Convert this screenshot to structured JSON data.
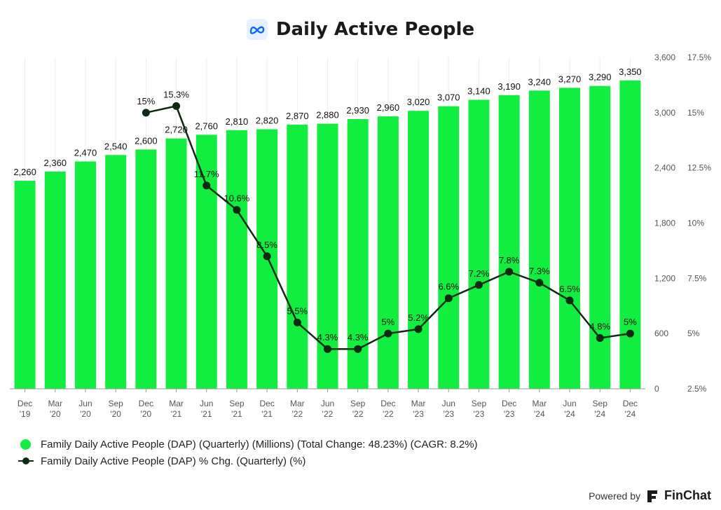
{
  "chart_data": {
    "type": "bar",
    "title": "Daily Active People",
    "categories": [
      "Dec '19",
      "Mar '20",
      "Jun '20",
      "Sep '20",
      "Dec '20",
      "Mar '21",
      "Jun '21",
      "Sep '21",
      "Dec '21",
      "Mar '22",
      "Jun '22",
      "Sep '22",
      "Dec '22",
      "Mar '23",
      "Jun '23",
      "Sep '23",
      "Dec '23",
      "Mar '24",
      "Jun '24",
      "Sep '24",
      "Dec '24"
    ],
    "category_lines": [
      [
        "Dec",
        "'19"
      ],
      [
        "Mar",
        "'20"
      ],
      [
        "Jun",
        "'20"
      ],
      [
        "Sep",
        "'20"
      ],
      [
        "Dec",
        "'20"
      ],
      [
        "Mar",
        "'21"
      ],
      [
        "Jun",
        "'21"
      ],
      [
        "Sep",
        "'21"
      ],
      [
        "Dec",
        "'21"
      ],
      [
        "Mar",
        "'22"
      ],
      [
        "Jun",
        "'22"
      ],
      [
        "Sep",
        "'22"
      ],
      [
        "Dec",
        "'22"
      ],
      [
        "Mar",
        "'23"
      ],
      [
        "Jun",
        "'23"
      ],
      [
        "Sep",
        "'23"
      ],
      [
        "Dec",
        "'23"
      ],
      [
        "Mar",
        "'24"
      ],
      [
        "Jun",
        "'24"
      ],
      [
        "Sep",
        "'24"
      ],
      [
        "Dec",
        "'24"
      ]
    ],
    "series": [
      {
        "name": "Family Daily Active People (DAP) (Quarterly) (Millions) (Total Change: 48.23%) (CAGR: 8.2%)",
        "type": "bar",
        "axis": "left",
        "color": "#12ee3f",
        "values": [
          2260,
          2360,
          2470,
          2540,
          2600,
          2720,
          2760,
          2810,
          2820,
          2870,
          2880,
          2930,
          2960,
          3020,
          3070,
          3140,
          3190,
          3240,
          3270,
          3290,
          3350
        ],
        "labels": [
          "2,260",
          "2,360",
          "2,470",
          "2,540",
          "2,600",
          "2,720",
          "2,760",
          "2,810",
          "2,820",
          "2,870",
          "2,880",
          "2,930",
          "2,960",
          "3,020",
          "3,070",
          "3,140",
          "3,190",
          "3,240",
          "3,270",
          "3,290",
          "3,350"
        ]
      },
      {
        "name": "Family Daily Active People (DAP) % Chg. (Quarterly) (%)",
        "type": "line",
        "axis": "right",
        "color": "#0f2a12",
        "values": [
          null,
          null,
          null,
          null,
          15,
          15.3,
          11.7,
          10.6,
          8.5,
          5.5,
          4.3,
          4.3,
          5,
          5.2,
          6.6,
          7.2,
          7.8,
          7.3,
          6.5,
          4.8,
          5
        ],
        "labels": [
          "",
          "",
          "",
          "",
          "15%",
          "15.3%",
          "11.7%",
          "10.6%",
          "8.5%",
          "5.5%",
          "4.3%",
          "4.3%",
          "5%",
          "5.2%",
          "6.6%",
          "7.2%",
          "7.8%",
          "7.3%",
          "6.5%",
          "4.8%",
          "5%"
        ]
      }
    ],
    "y_left": {
      "ylim": [
        0,
        3600
      ],
      "ticks": [
        0,
        600,
        1200,
        1800,
        2400,
        3000,
        3600
      ],
      "tick_labels": [
        "0",
        "600",
        "1,200",
        "1,800",
        "2,400",
        "3,000",
        "3,600"
      ]
    },
    "y_right": {
      "ylim": [
        2.5,
        17.5
      ],
      "ticks": [
        2.5,
        5,
        7.5,
        10,
        12.5,
        15,
        17.5
      ],
      "tick_labels": [
        "2.5%",
        "5%",
        "7.5%",
        "10%",
        "12.5%",
        "15%",
        "17.5%"
      ]
    },
    "grid": "vertical",
    "legend_position": "bottom-left"
  },
  "footer": {
    "powered_by": "Powered by",
    "brand": "FinChat"
  },
  "colors": {
    "bar": "#12ee3f",
    "line": "#0f2a12",
    "grid": "#ececec",
    "axis_text": "#555555"
  },
  "icons": {
    "title_logo": "meta-logo-icon",
    "brand_logo": "finchat-logo-icon"
  }
}
